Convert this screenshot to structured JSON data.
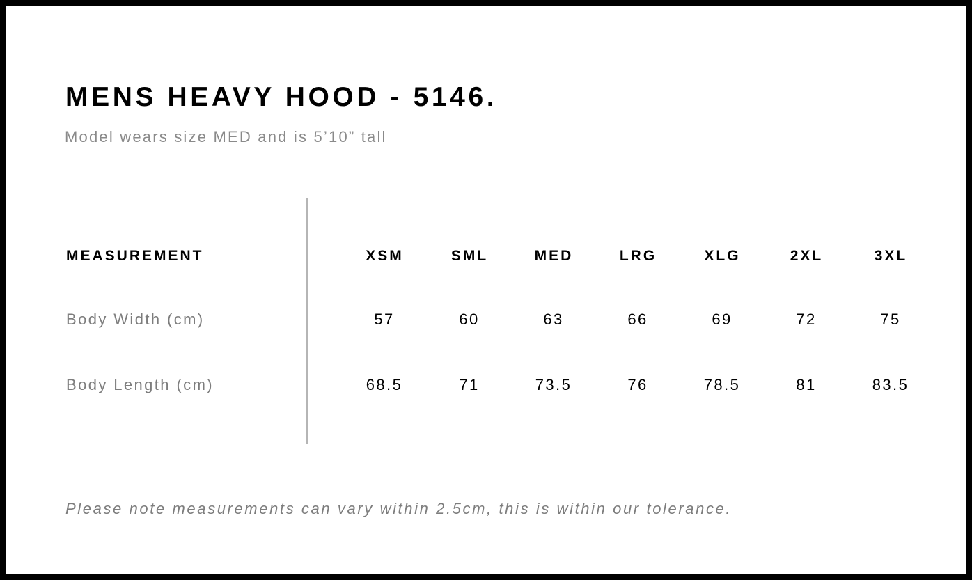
{
  "title": "MENS HEAVY HOOD - 5146.",
  "subtitle": "Model wears size MED and is 5’10” tall",
  "table": {
    "header_label": "MEASUREMENT",
    "sizes": [
      "XSM",
      "SML",
      "MED",
      "LRG",
      "XLG",
      "2XL",
      "3XL"
    ],
    "rows": [
      {
        "label": "Body Width (cm)",
        "values": [
          "57",
          "60",
          "63",
          "66",
          "69",
          "72",
          "75"
        ]
      },
      {
        "label": "Body Length (cm)",
        "values": [
          "68.5",
          "71",
          "73.5",
          "76",
          "78.5",
          "81",
          "83.5"
        ]
      }
    ]
  },
  "note": "Please note measurements can vary within 2.5cm, this is within our tolerance."
}
